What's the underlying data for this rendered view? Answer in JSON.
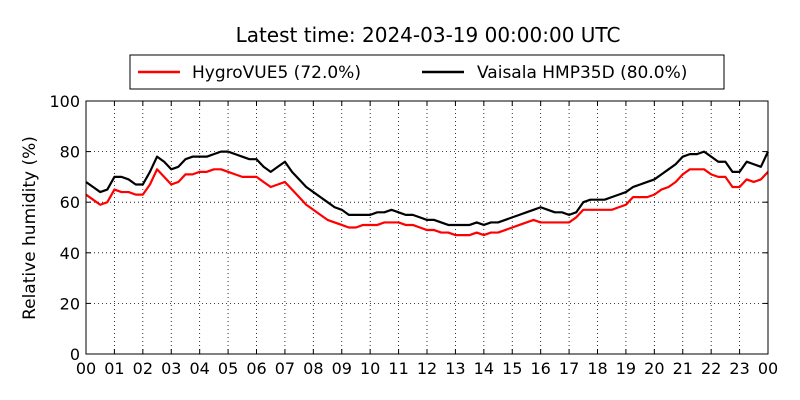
{
  "chart_data": {
    "type": "line",
    "title": "Latest time: 2024-03-19 00:00:00 UTC",
    "xlabel": "",
    "ylabel": "Relative humidity (%)",
    "ylim": [
      0,
      100
    ],
    "xlim": [
      0,
      24
    ],
    "grid": true,
    "legend_position": "top",
    "xtick_labels": [
      "00",
      "01",
      "02",
      "03",
      "04",
      "05",
      "06",
      "07",
      "08",
      "09",
      "10",
      "11",
      "12",
      "13",
      "14",
      "15",
      "16",
      "17",
      "18",
      "19",
      "20",
      "21",
      "22",
      "23",
      "00"
    ],
    "ytick_labels": [
      "0",
      "20",
      "40",
      "60",
      "80",
      "100"
    ],
    "x_hours": [
      0,
      0.25,
      0.5,
      0.75,
      1,
      1.25,
      1.5,
      1.75,
      2,
      2.25,
      2.5,
      2.75,
      3,
      3.25,
      3.5,
      3.75,
      4,
      4.25,
      4.5,
      4.75,
      5,
      5.25,
      5.5,
      5.75,
      6,
      6.25,
      6.5,
      6.75,
      7,
      7.25,
      7.5,
      7.75,
      8,
      8.25,
      8.5,
      8.75,
      9,
      9.25,
      9.5,
      9.75,
      10,
      10.25,
      10.5,
      10.75,
      11,
      11.25,
      11.5,
      11.75,
      12,
      12.25,
      12.5,
      12.75,
      13,
      13.25,
      13.5,
      13.75,
      14,
      14.25,
      14.5,
      14.75,
      15,
      15.25,
      15.5,
      15.75,
      16,
      16.25,
      16.5,
      16.75,
      17,
      17.25,
      17.5,
      17.75,
      18,
      18.25,
      18.5,
      18.75,
      19,
      19.25,
      19.5,
      19.75,
      20,
      20.25,
      20.5,
      20.75,
      21,
      21.25,
      21.5,
      21.75,
      22,
      22.25,
      22.5,
      22.75,
      23,
      23.25,
      23.5,
      23.75,
      24
    ],
    "series": [
      {
        "name": "HygroVUE5 (72.0%)",
        "color": "#ff0000",
        "values": [
          63,
          61,
          59,
          60,
          65,
          64,
          64,
          63,
          63,
          67,
          73,
          70,
          67,
          68,
          71,
          71,
          72,
          72,
          73,
          73,
          72,
          71,
          70,
          70,
          70,
          68,
          66,
          67,
          68,
          65,
          62,
          59,
          57,
          55,
          53,
          52,
          51,
          50,
          50,
          51,
          51,
          51,
          52,
          52,
          52,
          51,
          51,
          50,
          49,
          49,
          48,
          48,
          47,
          47,
          47,
          48,
          47,
          48,
          48,
          49,
          50,
          51,
          52,
          53,
          52,
          52,
          52,
          52,
          52,
          54,
          57,
          57,
          57,
          57,
          57,
          58,
          59,
          62,
          62,
          62,
          63,
          65,
          66,
          68,
          71,
          73,
          73,
          73,
          71,
          70,
          70,
          66,
          66,
          69,
          68,
          69,
          72
        ]
      },
      {
        "name": "Vaisala HMP35D (80.0%)",
        "color": "#000000",
        "values": [
          68,
          66,
          64,
          65,
          70,
          70,
          69,
          67,
          67,
          72,
          78,
          76,
          73,
          74,
          77,
          78,
          78,
          78,
          79,
          80,
          80,
          79,
          78,
          77,
          77,
          74,
          72,
          74,
          76,
          72,
          69,
          66,
          64,
          62,
          60,
          58,
          57,
          55,
          55,
          55,
          55,
          56,
          56,
          57,
          56,
          55,
          55,
          54,
          53,
          53,
          52,
          51,
          51,
          51,
          51,
          52,
          51,
          52,
          52,
          53,
          54,
          55,
          56,
          57,
          58,
          57,
          56,
          56,
          55,
          56,
          60,
          61,
          61,
          61,
          62,
          63,
          64,
          66,
          67,
          68,
          69,
          71,
          73,
          75,
          78,
          79,
          79,
          80,
          78,
          76,
          76,
          72,
          72,
          76,
          75,
          74,
          80
        ]
      }
    ]
  }
}
